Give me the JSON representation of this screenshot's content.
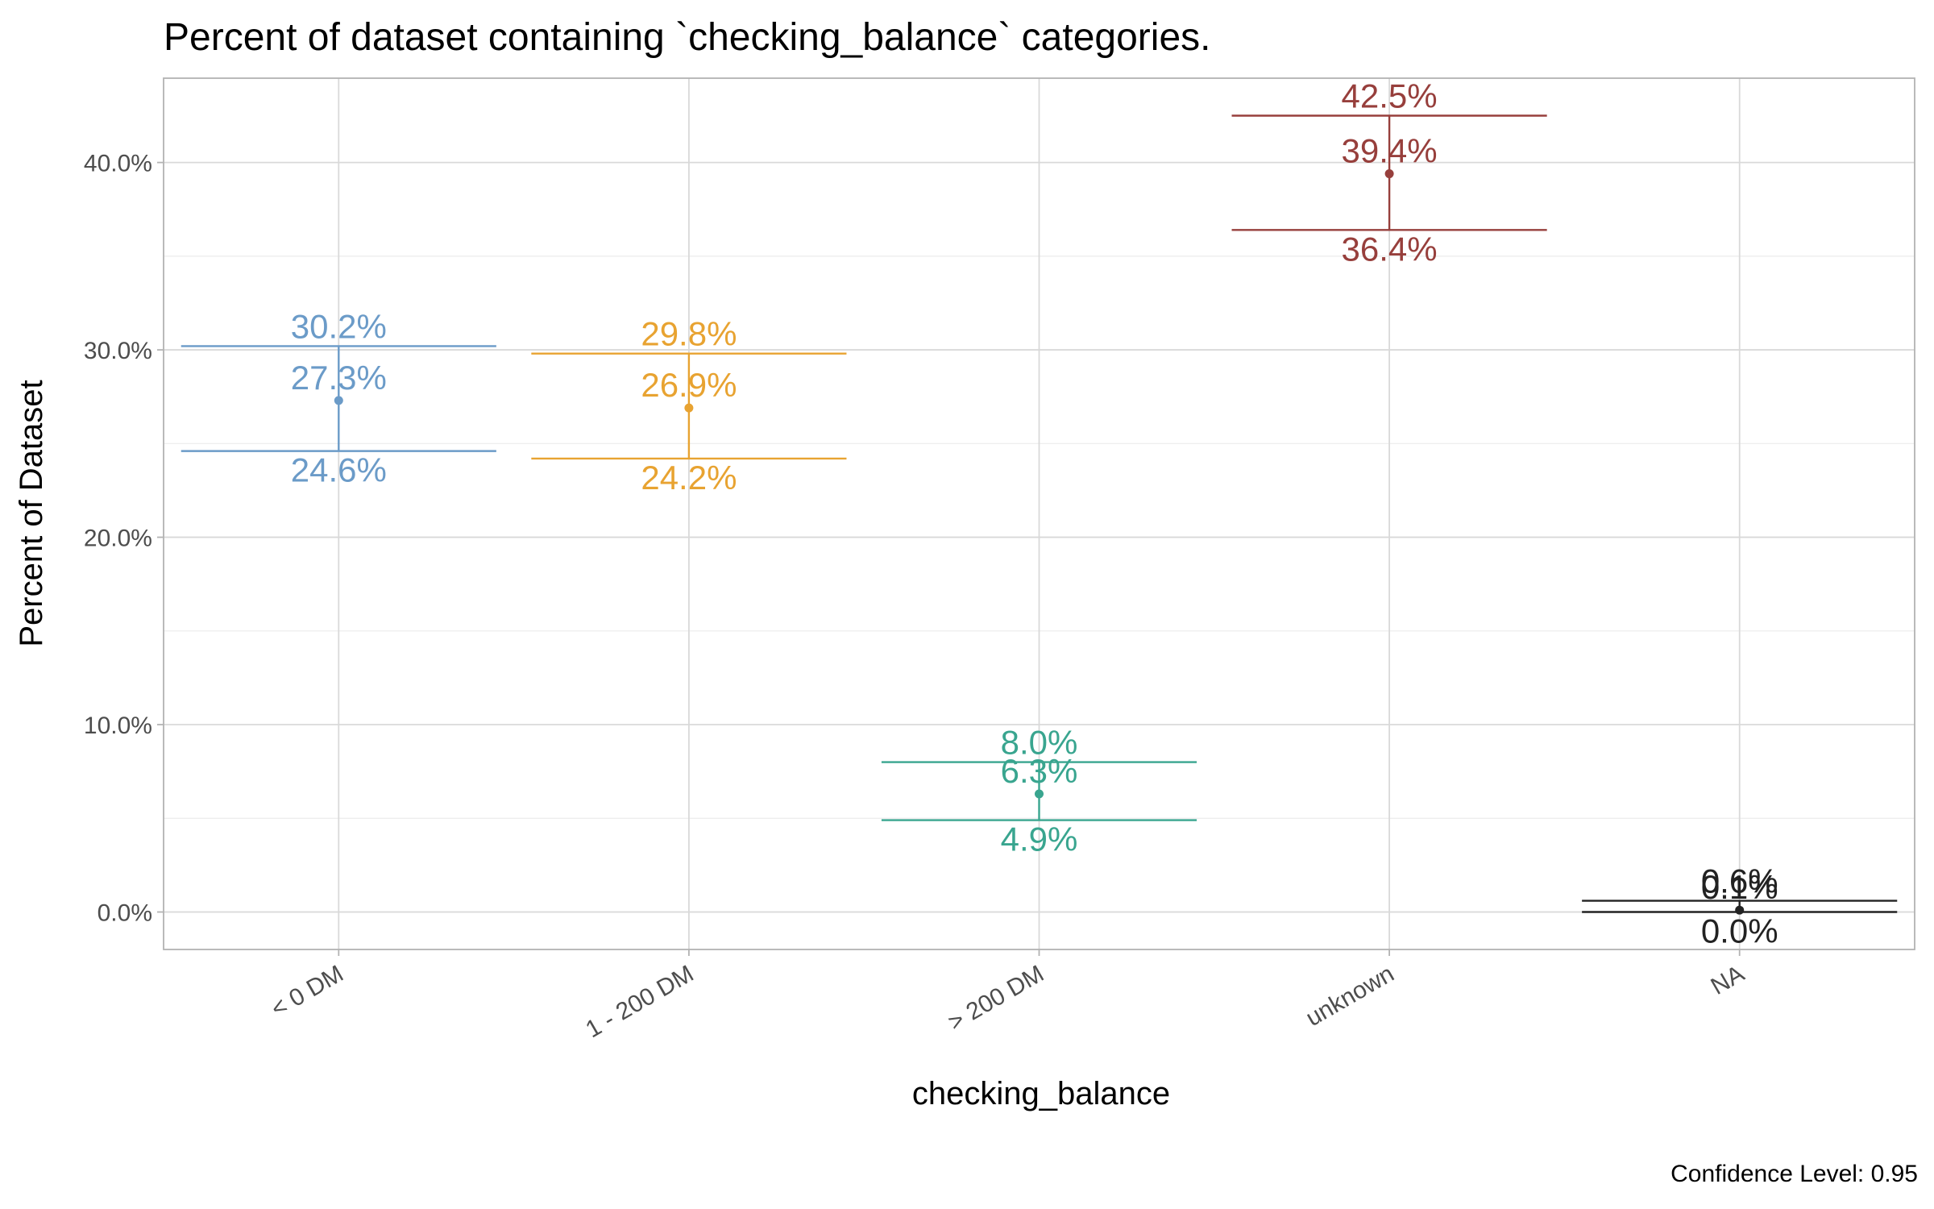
{
  "chart_data": {
    "type": "errorbar",
    "title": "Percent of dataset containing `checking_balance` categories.",
    "xlabel": "checking_balance",
    "ylabel": "Percent of Dataset",
    "caption": "Confidence Level: 0.95",
    "ylim": [
      -0.02,
      0.445
    ],
    "yticks": [
      0.0,
      0.1,
      0.2,
      0.3,
      0.4
    ],
    "ytick_labels": [
      "0.0%",
      "10.0%",
      "20.0%",
      "30.0%",
      "40.0%"
    ],
    "grid": true,
    "categories": [
      "< 0 DM",
      "1 - 200 DM",
      "> 200 DM",
      "unknown",
      "NA"
    ],
    "series": [
      {
        "category": "< 0 DM",
        "estimate": 0.273,
        "lower": 0.246,
        "upper": 0.302,
        "labels": {
          "estimate": "27.3%",
          "lower": "24.6%",
          "upper": "30.2%"
        },
        "color": "#6b9bc8"
      },
      {
        "category": "1 - 200 DM",
        "estimate": 0.269,
        "lower": 0.242,
        "upper": 0.298,
        "labels": {
          "estimate": "26.9%",
          "lower": "24.2%",
          "upper": "29.8%"
        },
        "color": "#e8a331"
      },
      {
        "category": "> 200 DM",
        "estimate": 0.063,
        "lower": 0.049,
        "upper": 0.08,
        "labels": {
          "estimate": "6.3%",
          "lower": "4.9%",
          "upper": "8.0%"
        },
        "color": "#39a58f"
      },
      {
        "category": "unknown",
        "estimate": 0.394,
        "lower": 0.364,
        "upper": 0.425,
        "labels": {
          "estimate": "39.4%",
          "lower": "36.4%",
          "upper": "42.5%"
        },
        "color": "#973f3c"
      },
      {
        "category": "NA",
        "estimate": 0.001,
        "lower": 0.0,
        "upper": 0.006,
        "labels": {
          "estimate": "0.1%",
          "lower": "0.0%",
          "upper": "0.6%"
        },
        "color": "#222222"
      }
    ]
  }
}
